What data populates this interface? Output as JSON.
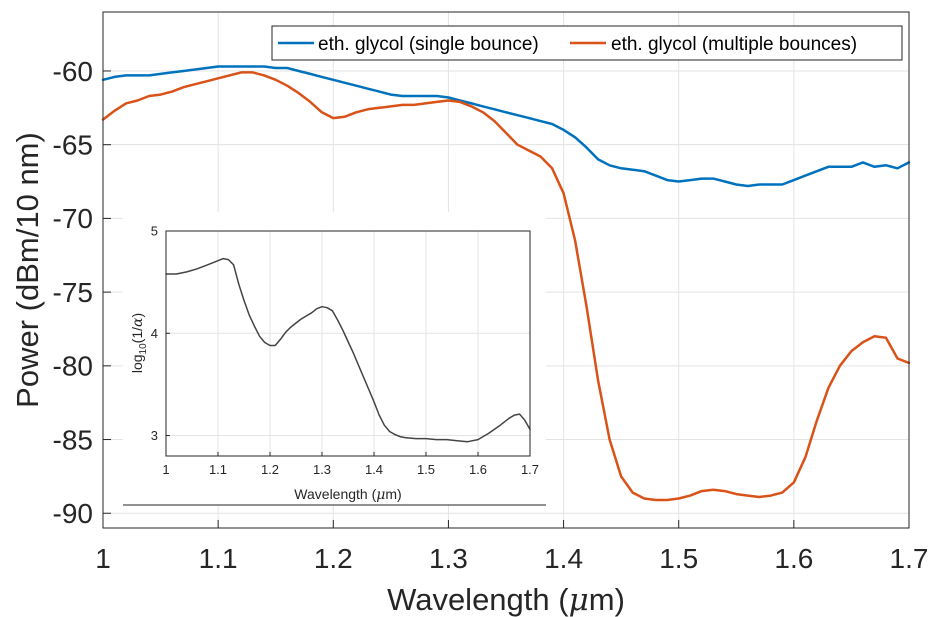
{
  "chart_data": [
    {
      "type": "line",
      "title": "",
      "xlabel": "Wavelength (",
      "xlabel_mu": "μ",
      "xlabel_unit": "m)",
      "ylabel": "Power (dBm/10 nm)",
      "xlim": [
        1.0,
        1.7
      ],
      "ylim": [
        -91,
        -56
      ],
      "xticks": [
        "1",
        "1.1",
        "1.2",
        "1.3",
        "1.4",
        "1.5",
        "1.6",
        "1.7"
      ],
      "yticks": [
        "-60",
        "-65",
        "-70",
        "-75",
        "-80",
        "-85",
        "-90"
      ],
      "grid": true,
      "legend_position": "top-right",
      "series": [
        {
          "name": "eth. glycol (single bounce)",
          "color": "#0072BD",
          "points": [
            [
              1.0,
              -60.6
            ],
            [
              1.01,
              -60.4
            ],
            [
              1.02,
              -60.3
            ],
            [
              1.03,
              -60.3
            ],
            [
              1.04,
              -60.3
            ],
            [
              1.05,
              -60.2
            ],
            [
              1.06,
              -60.1
            ],
            [
              1.07,
              -60.0
            ],
            [
              1.08,
              -59.9
            ],
            [
              1.09,
              -59.8
            ],
            [
              1.1,
              -59.7
            ],
            [
              1.11,
              -59.7
            ],
            [
              1.12,
              -59.7
            ],
            [
              1.13,
              -59.7
            ],
            [
              1.14,
              -59.7
            ],
            [
              1.15,
              -59.8
            ],
            [
              1.16,
              -59.8
            ],
            [
              1.17,
              -60.0
            ],
            [
              1.18,
              -60.2
            ],
            [
              1.19,
              -60.4
            ],
            [
              1.2,
              -60.6
            ],
            [
              1.21,
              -60.8
            ],
            [
              1.22,
              -61.0
            ],
            [
              1.23,
              -61.2
            ],
            [
              1.24,
              -61.4
            ],
            [
              1.25,
              -61.6
            ],
            [
              1.26,
              -61.7
            ],
            [
              1.27,
              -61.7
            ],
            [
              1.28,
              -61.7
            ],
            [
              1.29,
              -61.7
            ],
            [
              1.3,
              -61.8
            ],
            [
              1.31,
              -62.0
            ],
            [
              1.32,
              -62.2
            ],
            [
              1.33,
              -62.4
            ],
            [
              1.34,
              -62.6
            ],
            [
              1.35,
              -62.8
            ],
            [
              1.36,
              -63.0
            ],
            [
              1.37,
              -63.2
            ],
            [
              1.38,
              -63.4
            ],
            [
              1.39,
              -63.6
            ],
            [
              1.4,
              -64.0
            ],
            [
              1.41,
              -64.5
            ],
            [
              1.42,
              -65.2
            ],
            [
              1.43,
              -66.0
            ],
            [
              1.44,
              -66.4
            ],
            [
              1.45,
              -66.6
            ],
            [
              1.46,
              -66.7
            ],
            [
              1.47,
              -66.8
            ],
            [
              1.48,
              -67.1
            ],
            [
              1.49,
              -67.4
            ],
            [
              1.5,
              -67.5
            ],
            [
              1.51,
              -67.4
            ],
            [
              1.52,
              -67.3
            ],
            [
              1.53,
              -67.3
            ],
            [
              1.54,
              -67.5
            ],
            [
              1.55,
              -67.7
            ],
            [
              1.56,
              -67.8
            ],
            [
              1.57,
              -67.7
            ],
            [
              1.58,
              -67.7
            ],
            [
              1.59,
              -67.7
            ],
            [
              1.6,
              -67.4
            ],
            [
              1.61,
              -67.1
            ],
            [
              1.62,
              -66.8
            ],
            [
              1.63,
              -66.5
            ],
            [
              1.64,
              -66.5
            ],
            [
              1.65,
              -66.5
            ],
            [
              1.66,
              -66.2
            ],
            [
              1.67,
              -66.5
            ],
            [
              1.68,
              -66.4
            ],
            [
              1.69,
              -66.6
            ],
            [
              1.7,
              -66.2
            ]
          ]
        },
        {
          "name": "eth. glycol (multiple bounces)",
          "color": "#D95319",
          "points": [
            [
              1.0,
              -63.3
            ],
            [
              1.01,
              -62.7
            ],
            [
              1.02,
              -62.2
            ],
            [
              1.03,
              -62.0
            ],
            [
              1.04,
              -61.7
            ],
            [
              1.05,
              -61.6
            ],
            [
              1.06,
              -61.4
            ],
            [
              1.07,
              -61.1
            ],
            [
              1.08,
              -60.9
            ],
            [
              1.09,
              -60.7
            ],
            [
              1.1,
              -60.5
            ],
            [
              1.11,
              -60.3
            ],
            [
              1.12,
              -60.1
            ],
            [
              1.13,
              -60.1
            ],
            [
              1.14,
              -60.3
            ],
            [
              1.15,
              -60.6
            ],
            [
              1.16,
              -61.0
            ],
            [
              1.17,
              -61.5
            ],
            [
              1.18,
              -62.1
            ],
            [
              1.19,
              -62.8
            ],
            [
              1.2,
              -63.2
            ],
            [
              1.21,
              -63.1
            ],
            [
              1.22,
              -62.8
            ],
            [
              1.23,
              -62.6
            ],
            [
              1.24,
              -62.5
            ],
            [
              1.25,
              -62.4
            ],
            [
              1.26,
              -62.3
            ],
            [
              1.27,
              -62.3
            ],
            [
              1.28,
              -62.2
            ],
            [
              1.29,
              -62.1
            ],
            [
              1.3,
              -62.0
            ],
            [
              1.31,
              -62.1
            ],
            [
              1.32,
              -62.4
            ],
            [
              1.33,
              -62.8
            ],
            [
              1.34,
              -63.4
            ],
            [
              1.35,
              -64.2
            ],
            [
              1.36,
              -65.0
            ],
            [
              1.37,
              -65.4
            ],
            [
              1.38,
              -65.8
            ],
            [
              1.39,
              -66.6
            ],
            [
              1.4,
              -68.3
            ],
            [
              1.41,
              -71.5
            ],
            [
              1.42,
              -76.0
            ],
            [
              1.43,
              -81.0
            ],
            [
              1.44,
              -85.0
            ],
            [
              1.45,
              -87.5
            ],
            [
              1.46,
              -88.6
            ],
            [
              1.47,
              -89.0
            ],
            [
              1.48,
              -89.1
            ],
            [
              1.49,
              -89.1
            ],
            [
              1.5,
              -89.0
            ],
            [
              1.51,
              -88.8
            ],
            [
              1.52,
              -88.5
            ],
            [
              1.53,
              -88.4
            ],
            [
              1.54,
              -88.5
            ],
            [
              1.55,
              -88.7
            ],
            [
              1.56,
              -88.8
            ],
            [
              1.57,
              -88.9
            ],
            [
              1.58,
              -88.8
            ],
            [
              1.59,
              -88.6
            ],
            [
              1.6,
              -87.9
            ],
            [
              1.61,
              -86.2
            ],
            [
              1.62,
              -83.7
            ],
            [
              1.63,
              -81.5
            ],
            [
              1.64,
              -80.0
            ],
            [
              1.65,
              -79.0
            ],
            [
              1.66,
              -78.4
            ],
            [
              1.67,
              -78.0
            ],
            [
              1.68,
              -78.1
            ],
            [
              1.69,
              -79.5
            ],
            [
              1.7,
              -79.8
            ]
          ]
        }
      ]
    },
    {
      "type": "line",
      "title": "",
      "xlabel": "Wavelength (",
      "xlabel_mu": "μ",
      "xlabel_unit": "m)",
      "ylabel_prefix": "log",
      "ylabel_sub": "10",
      "ylabel_mid": "(1/",
      "ylabel_alpha": "α",
      "ylabel_end": ")",
      "xlim": [
        1.0,
        1.7
      ],
      "ylim": [
        2.8,
        5.0
      ],
      "xticks": [
        "1",
        "1.1",
        "1.2",
        "1.3",
        "1.4",
        "1.5",
        "1.6",
        "1.7"
      ],
      "yticks": [
        "5",
        "4",
        "3"
      ],
      "grid": true,
      "series": [
        {
          "color": "#444444",
          "points": [
            [
              1.0,
              4.58
            ],
            [
              1.02,
              4.58
            ],
            [
              1.04,
              4.6
            ],
            [
              1.06,
              4.63
            ],
            [
              1.08,
              4.67
            ],
            [
              1.1,
              4.71
            ],
            [
              1.11,
              4.73
            ],
            [
              1.12,
              4.72
            ],
            [
              1.13,
              4.67
            ],
            [
              1.14,
              4.48
            ],
            [
              1.15,
              4.32
            ],
            [
              1.16,
              4.18
            ],
            [
              1.17,
              4.07
            ],
            [
              1.18,
              3.97
            ],
            [
              1.19,
              3.91
            ],
            [
              1.2,
              3.88
            ],
            [
              1.21,
              3.88
            ],
            [
              1.22,
              3.94
            ],
            [
              1.23,
              4.01
            ],
            [
              1.24,
              4.06
            ],
            [
              1.25,
              4.1
            ],
            [
              1.26,
              4.14
            ],
            [
              1.27,
              4.17
            ],
            [
              1.28,
              4.2
            ],
            [
              1.29,
              4.24
            ],
            [
              1.3,
              4.26
            ],
            [
              1.31,
              4.25
            ],
            [
              1.32,
              4.22
            ],
            [
              1.33,
              4.13
            ],
            [
              1.34,
              4.03
            ],
            [
              1.35,
              3.92
            ],
            [
              1.36,
              3.81
            ],
            [
              1.37,
              3.69
            ],
            [
              1.38,
              3.57
            ],
            [
              1.39,
              3.45
            ],
            [
              1.4,
              3.33
            ],
            [
              1.41,
              3.2
            ],
            [
              1.42,
              3.1
            ],
            [
              1.43,
              3.04
            ],
            [
              1.44,
              3.01
            ],
            [
              1.45,
              2.99
            ],
            [
              1.46,
              2.98
            ],
            [
              1.48,
              2.97
            ],
            [
              1.5,
              2.97
            ],
            [
              1.52,
              2.96
            ],
            [
              1.54,
              2.96
            ],
            [
              1.56,
              2.95
            ],
            [
              1.58,
              2.94
            ],
            [
              1.6,
              2.96
            ],
            [
              1.62,
              3.02
            ],
            [
              1.64,
              3.09
            ],
            [
              1.66,
              3.17
            ],
            [
              1.67,
              3.2
            ],
            [
              1.68,
              3.21
            ],
            [
              1.69,
              3.15
            ],
            [
              1.7,
              3.06
            ]
          ]
        }
      ]
    }
  ]
}
